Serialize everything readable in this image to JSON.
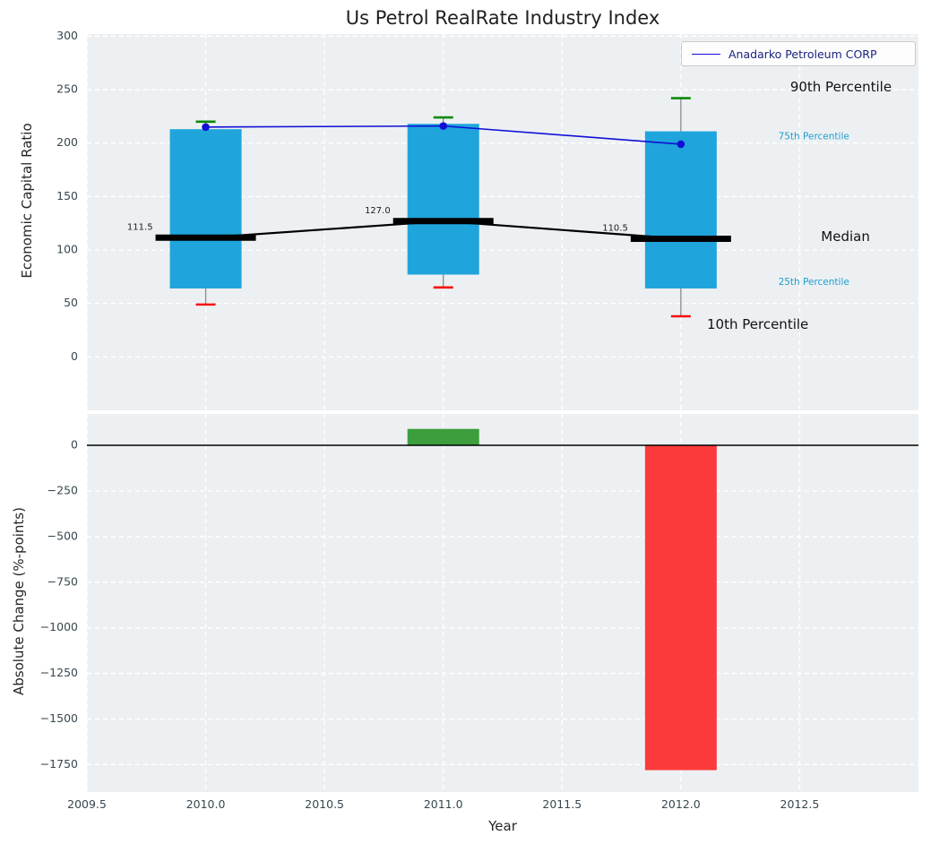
{
  "figure": {
    "background": "#ffffff",
    "axes_background": "#edf0f2",
    "grid_color": "#ffffff",
    "tick_color": "#37474f",
    "label_color": "#262626",
    "legend_text_color": "#1a237e",
    "legend_border_color": "#c9c9c9"
  },
  "chart_data": [
    {
      "type": "boxplot+line",
      "title": "Us Petrol RealRate Industry Index",
      "ylabel": "Economic Capital Ratio",
      "ylim": [
        -50,
        302
      ],
      "yticks": [
        300,
        250,
        200,
        150,
        100,
        50,
        0
      ],
      "ytick_labels": [
        "300",
        "250",
        "200",
        "150",
        "100",
        "50",
        "0"
      ],
      "xlim": [
        2009.5,
        2013.0
      ],
      "boxes": [
        {
          "year": 2010,
          "p90": 220,
          "p75": 213,
          "median": 111.5,
          "p25": 64,
          "p10": 49,
          "label": "111.5"
        },
        {
          "year": 2011,
          "p90": 224,
          "p75": 218,
          "median": 127.0,
          "p25": 77,
          "p10": 65,
          "label": "127.0"
        },
        {
          "year": 2012,
          "p90": 242,
          "p75": 211,
          "median": 110.5,
          "p25": 64,
          "p10": 38,
          "label": "110.5"
        }
      ],
      "series": [
        {
          "name": "Anadarko Petroleum CORP",
          "x": [
            2010,
            2011,
            2012
          ],
          "values": [
            215,
            216,
            199
          ],
          "color": "#0f0fd6"
        }
      ],
      "legend": {
        "label": "Anadarko Petroleum CORP"
      },
      "annotations": [
        {
          "text": "90th Percentile",
          "x": 2012.46,
          "y": 252,
          "size": 15,
          "color": "#111111"
        },
        {
          "text": "75th Percentile",
          "x": 2012.41,
          "y": 206,
          "size": 10.5,
          "color": "#1e9fd0"
        },
        {
          "text": "Median",
          "x": 2012.59,
          "y": 112,
          "size": 15,
          "color": "#111111"
        },
        {
          "text": "25th Percentile",
          "x": 2012.41,
          "y": 70,
          "size": 10.5,
          "color": "#1e9fd0"
        },
        {
          "text": "10th Percentile",
          "x": 2012.11,
          "y": 30,
          "size": 15,
          "color": "#111111"
        }
      ],
      "colors": {
        "box": "#1fa5dc",
        "median": "#000000",
        "whisker": "#8a8a8a",
        "cap_top": "#0a8a0a",
        "cap_bottom": "#f50f0f"
      }
    },
    {
      "type": "bar",
      "ylabel": "Absolute Change (%-points)",
      "xlabel": "Year",
      "ylim": [
        -1900,
        172
      ],
      "yticks": [
        0,
        -250,
        -500,
        -750,
        -1000,
        -1250,
        -1500,
        -1750
      ],
      "ytick_labels": [
        "0",
        "−250",
        "−500",
        "−750",
        "−1000",
        "−1250",
        "−1500",
        "−1750"
      ],
      "xticks": [
        2009.5,
        2010.0,
        2010.5,
        2011.0,
        2011.5,
        2012.0,
        2012.5
      ],
      "xtick_labels": [
        "2009.5",
        "2010.0",
        "2010.5",
        "2011.0",
        "2011.5",
        "2012.0",
        "2012.5"
      ],
      "bars": [
        {
          "x": 2011,
          "value": 90,
          "color": "#3c9e3c"
        },
        {
          "x": 2012,
          "value": -1780,
          "color": "#fb3b3b"
        }
      ]
    }
  ]
}
